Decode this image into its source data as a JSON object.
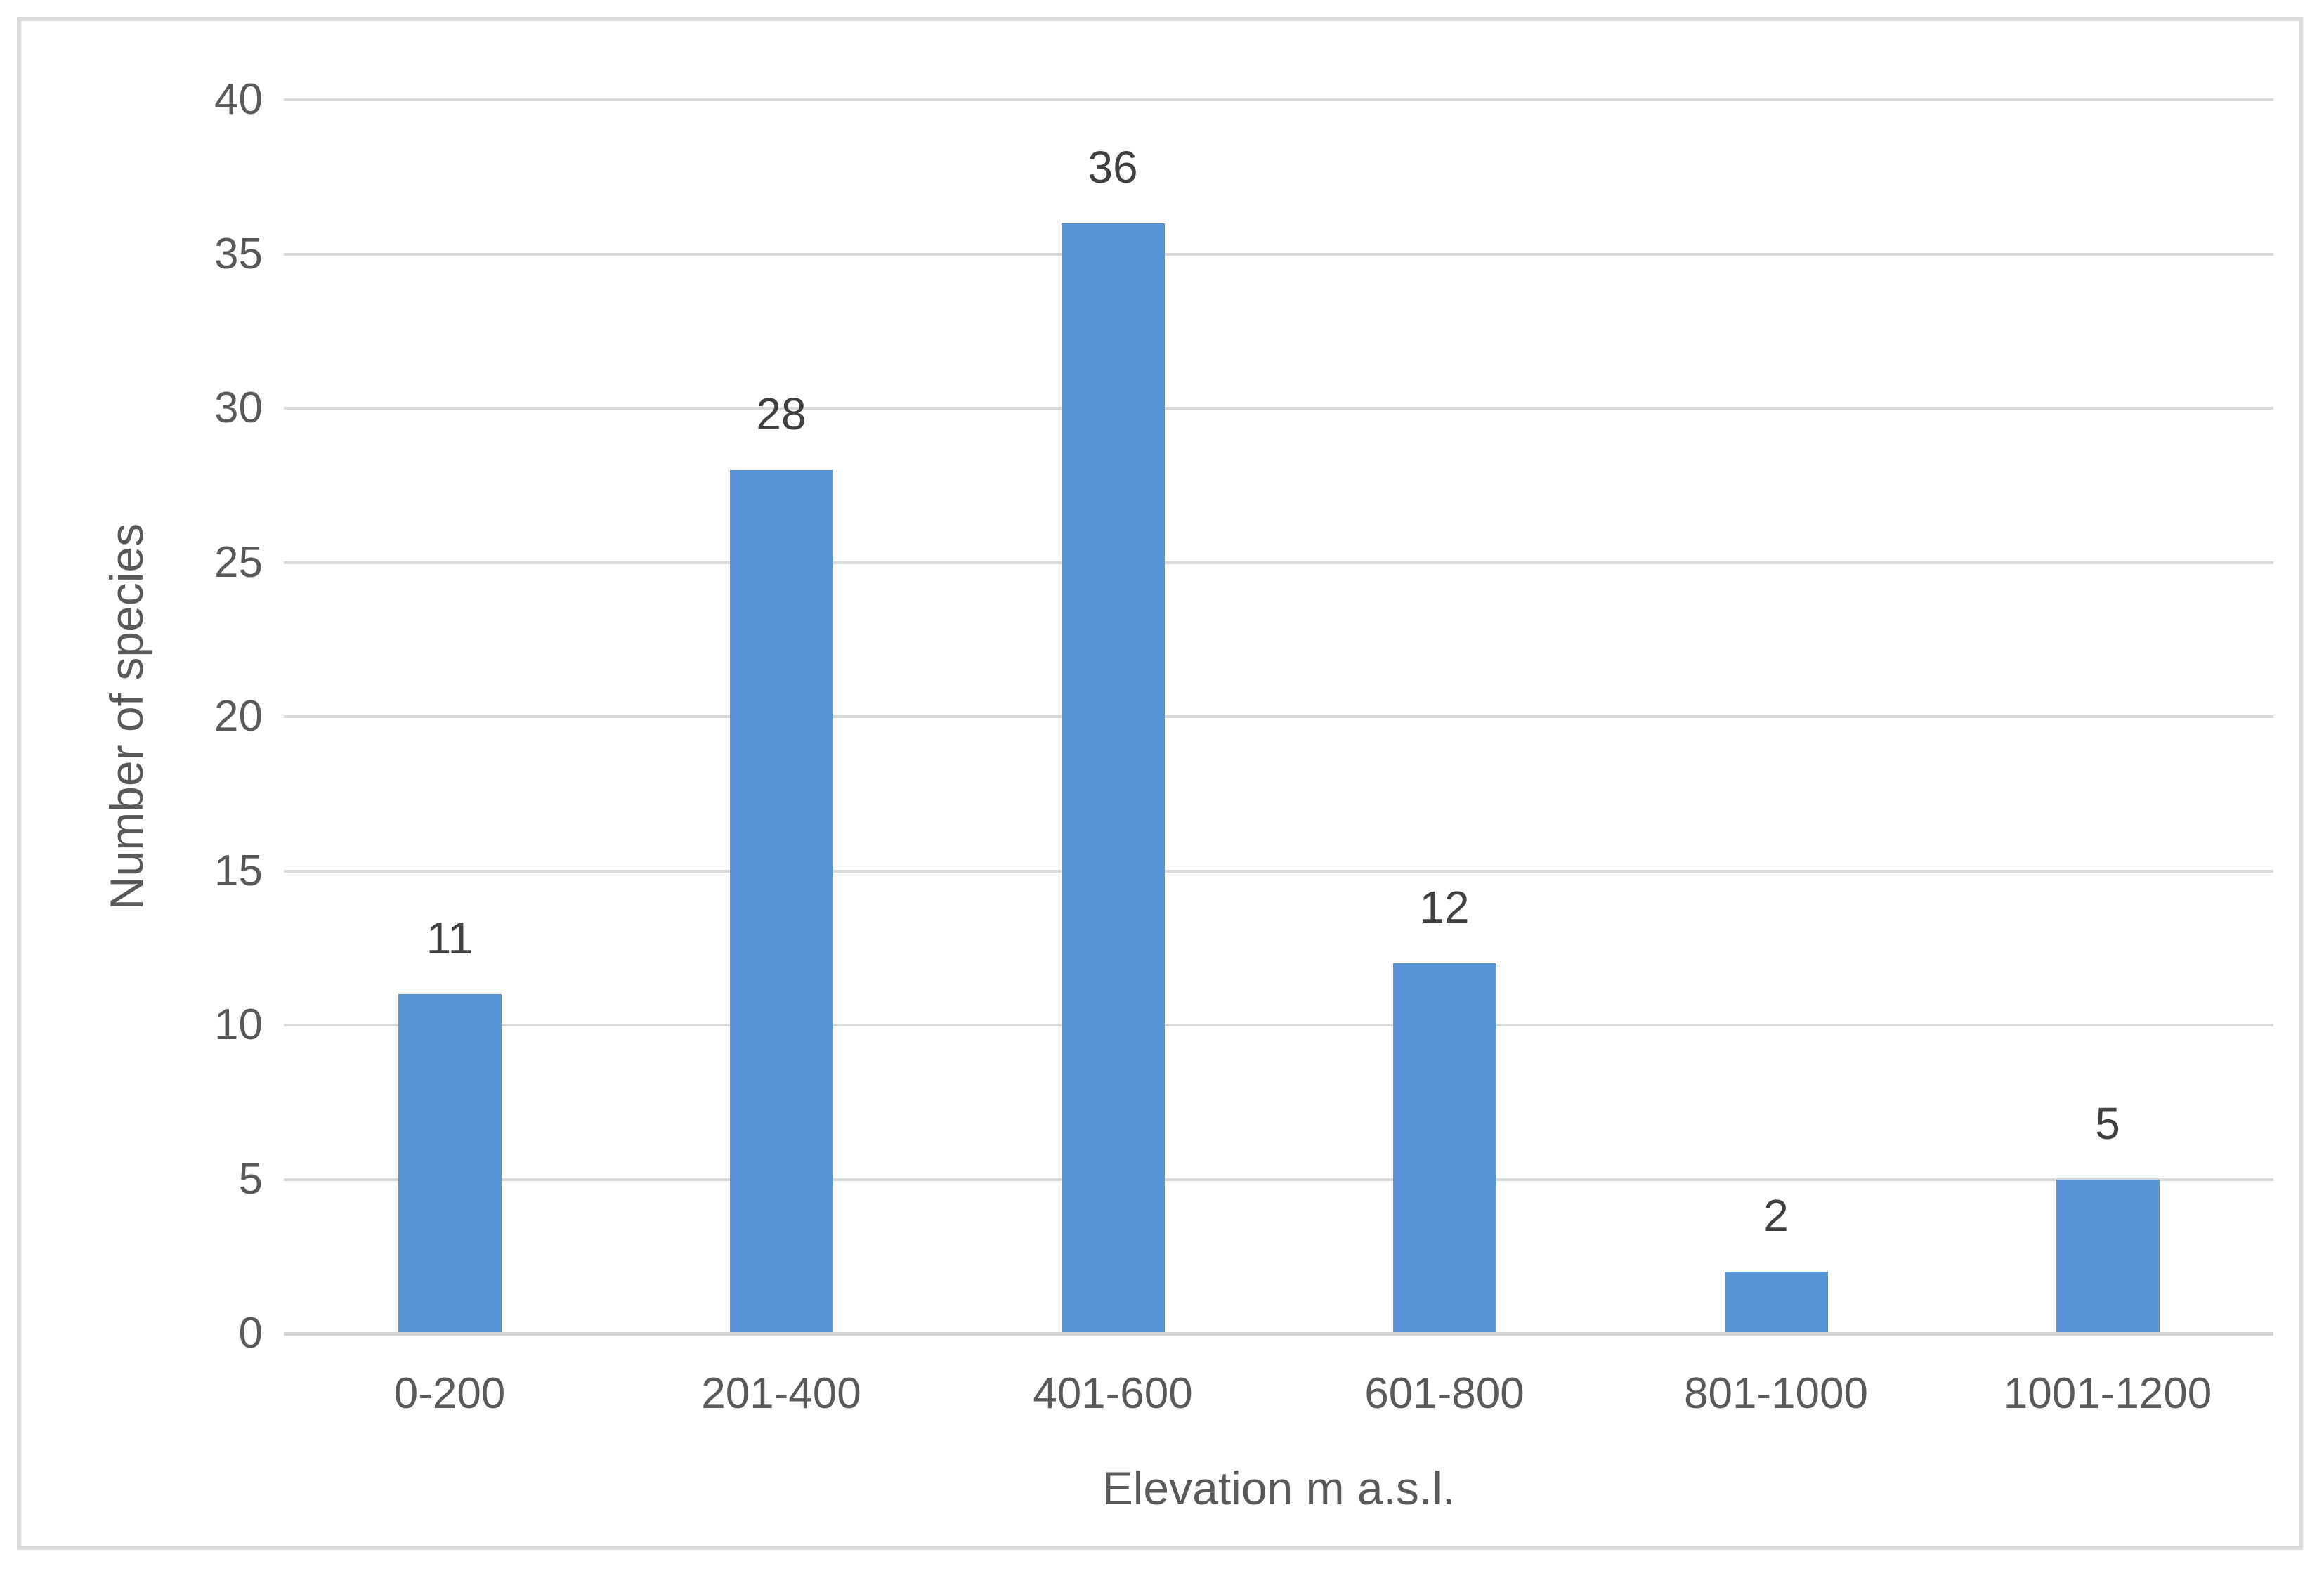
{
  "chart_data": {
    "type": "bar",
    "title": "",
    "categories": [
      "0-200",
      "201-400",
      "401-600",
      "601-800",
      "801-1000",
      "1001-1200"
    ],
    "values": [
      11,
      28,
      36,
      12,
      2,
      5
    ],
    "data_labels": [
      "11",
      "28",
      "36",
      "12",
      "2",
      "5"
    ],
    "xlabel": "Elevation m a.s.l.",
    "ylabel": "Number of species",
    "ylim": [
      0,
      40
    ],
    "yticks": [
      0,
      5,
      10,
      15,
      20,
      25,
      30,
      35,
      40
    ],
    "grid": "horizontal-only",
    "legend_position": "none",
    "colors": {
      "bar_fill": "#5795d5",
      "gridline": "#d9d9d9",
      "axis_line": "#d2d2d2",
      "tick_label": "#595959",
      "data_label": "#404040",
      "frame_border": "#dbdbdb",
      "background": "#ffffff"
    }
  }
}
